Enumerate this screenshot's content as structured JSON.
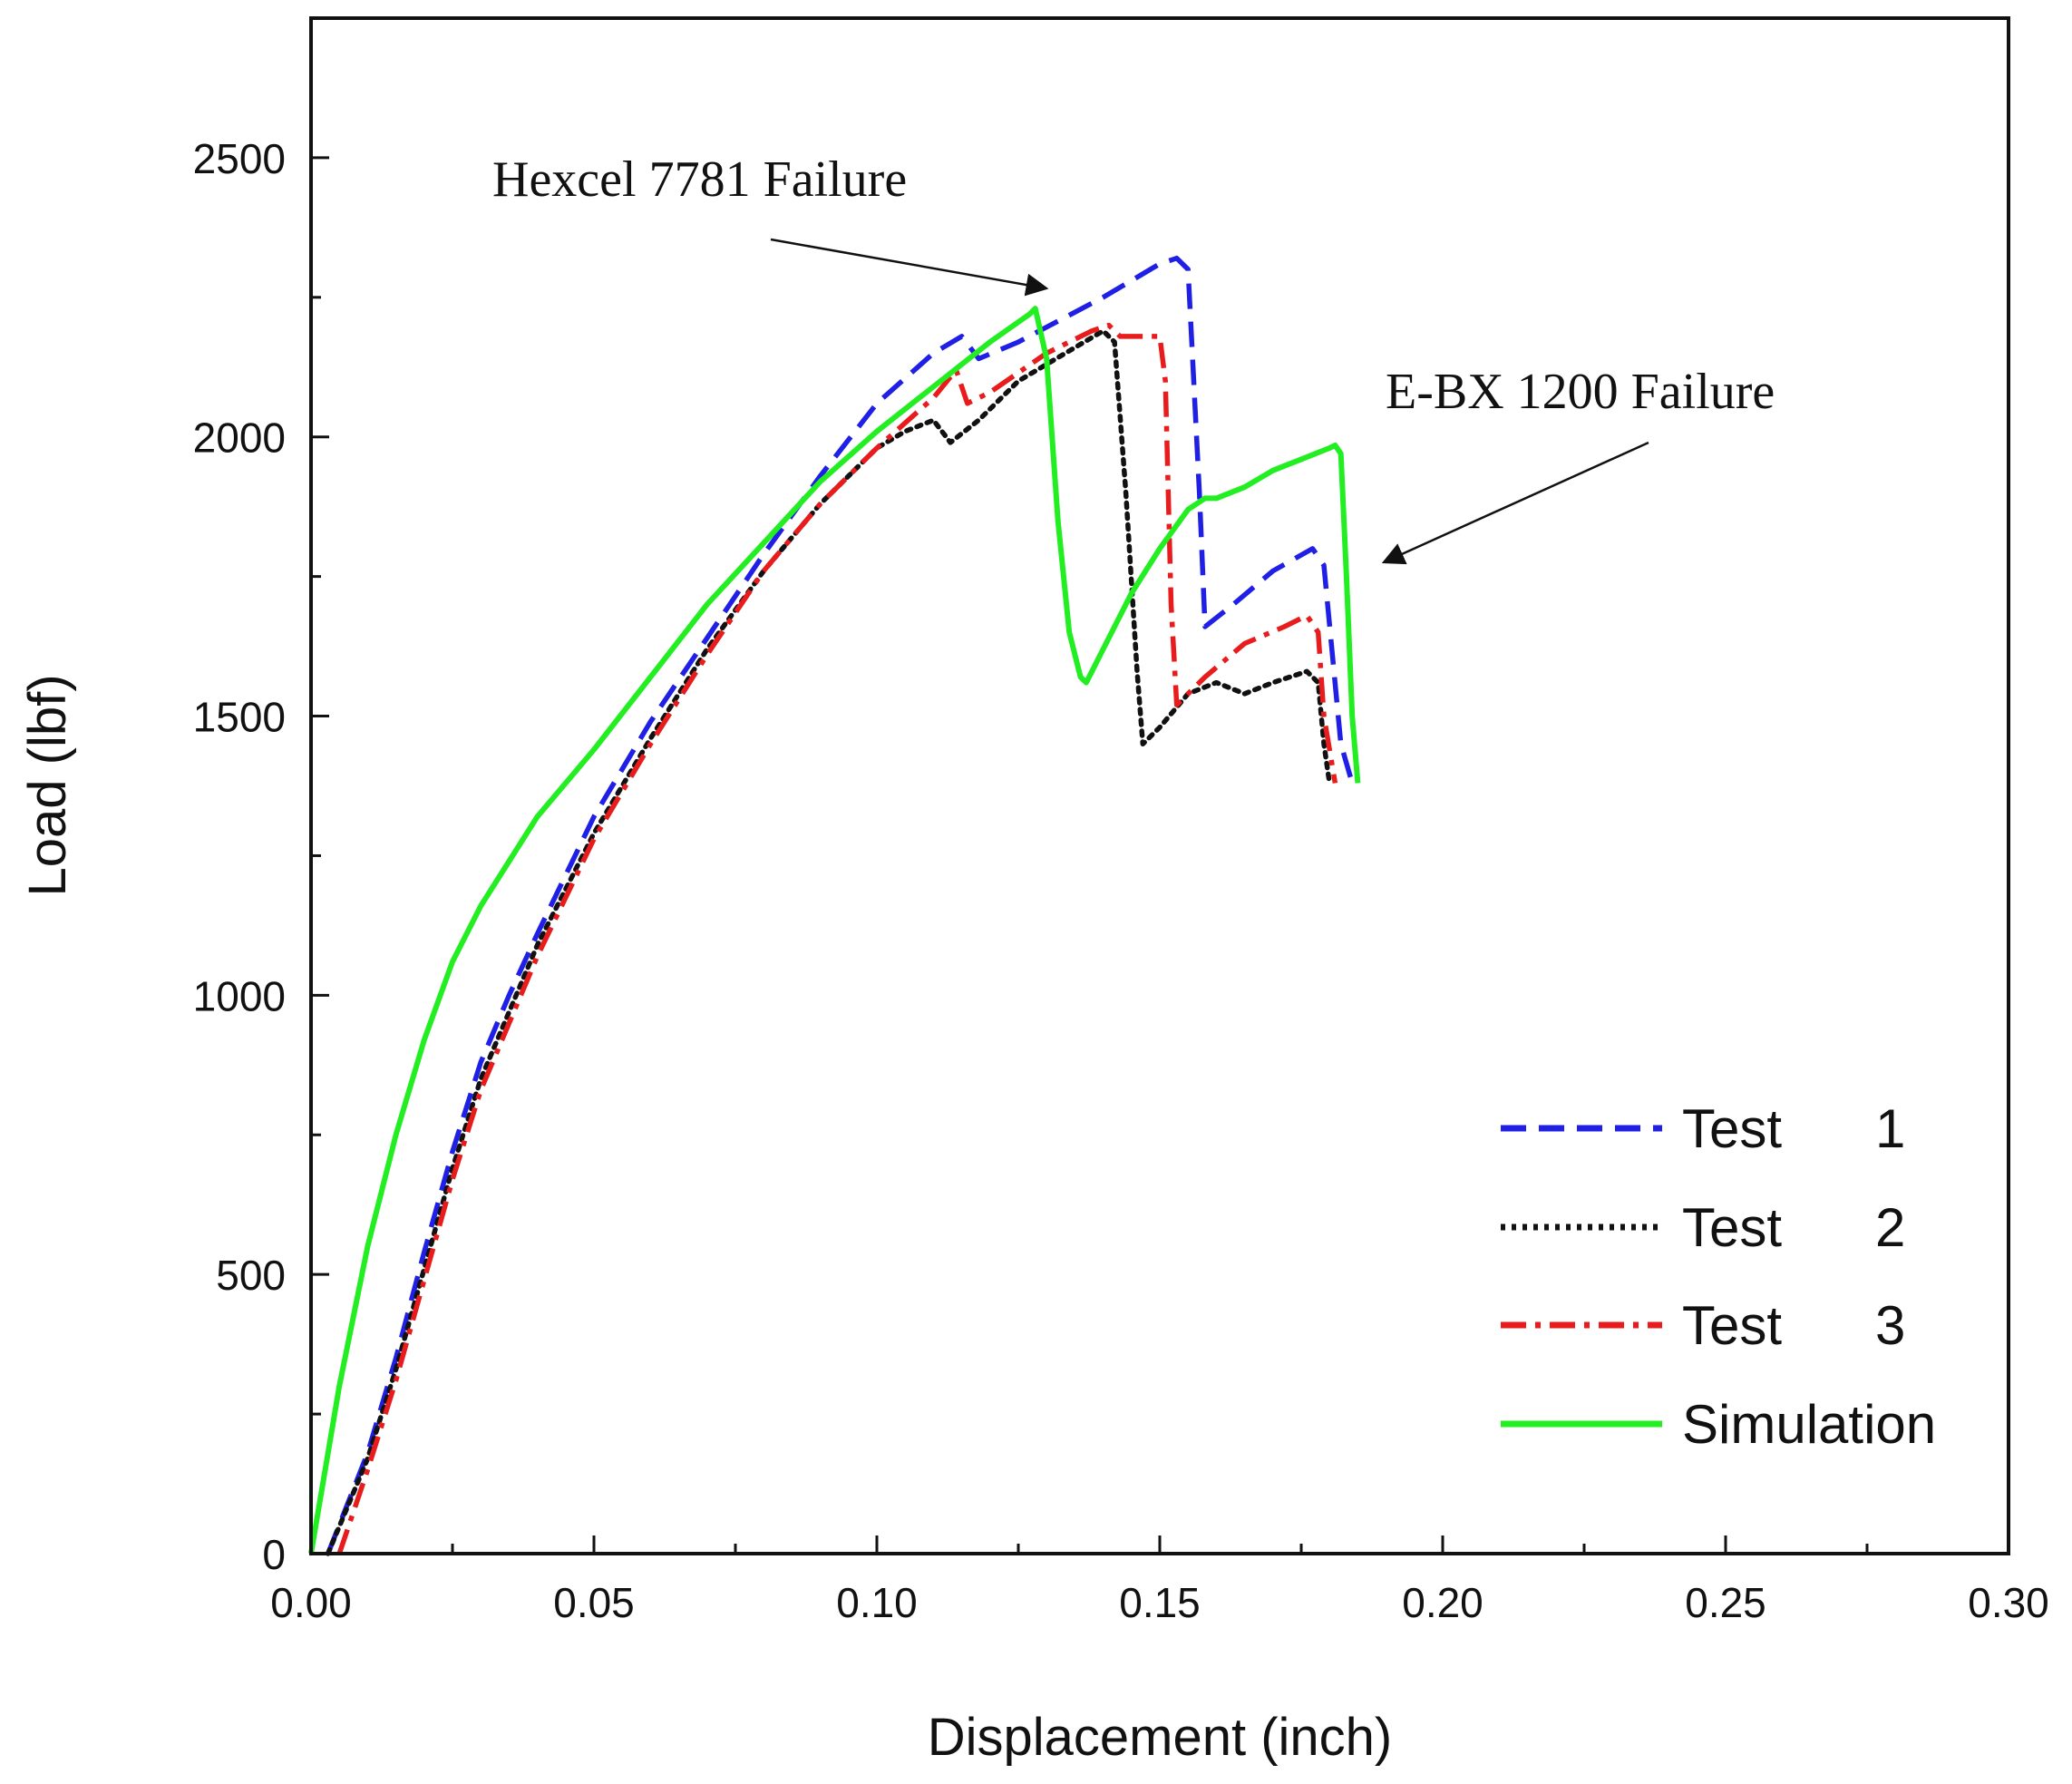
{
  "chart_data": {
    "type": "line",
    "title": "",
    "xlabel": "Displacement (inch)",
    "ylabel": "Load (lbf)",
    "xlim": [
      0.0,
      0.3
    ],
    "ylim": [
      0,
      2750
    ],
    "xticks": [
      "0.00",
      "0.05",
      "0.10",
      "0.15",
      "0.20",
      "0.25",
      "0.30"
    ],
    "yticks": [
      "0",
      "500",
      "1000",
      "1500",
      "2000",
      "2500"
    ],
    "grid": false,
    "legend_position": "bottom-right",
    "annotations": [
      {
        "text": "Hexcel 7781 Failure",
        "points_to": [
          0.13,
          2240
        ]
      },
      {
        "text": "E-BX 1200 Failure",
        "points_to": [
          0.188,
          1770
        ]
      }
    ],
    "series": [
      {
        "name": "Test",
        "legend_number": "1",
        "color": "#1f1fe6",
        "dash": "dashed",
        "points": [
          [
            0.003,
            0
          ],
          [
            0.01,
            180
          ],
          [
            0.015,
            350
          ],
          [
            0.02,
            540
          ],
          [
            0.025,
            720
          ],
          [
            0.03,
            880
          ],
          [
            0.035,
            1000
          ],
          [
            0.04,
            1110
          ],
          [
            0.05,
            1320
          ],
          [
            0.06,
            1490
          ],
          [
            0.07,
            1640
          ],
          [
            0.08,
            1790
          ],
          [
            0.09,
            1930
          ],
          [
            0.1,
            2060
          ],
          [
            0.11,
            2150
          ],
          [
            0.115,
            2180
          ],
          [
            0.118,
            2140
          ],
          [
            0.125,
            2170
          ],
          [
            0.14,
            2250
          ],
          [
            0.15,
            2310
          ],
          [
            0.153,
            2320
          ],
          [
            0.155,
            2300
          ],
          [
            0.157,
            1900
          ],
          [
            0.158,
            1660
          ],
          [
            0.163,
            1700
          ],
          [
            0.17,
            1760
          ],
          [
            0.177,
            1800
          ],
          [
            0.179,
            1770
          ],
          [
            0.182,
            1450
          ],
          [
            0.184,
            1380
          ]
        ]
      },
      {
        "name": "Test",
        "legend_number": "2",
        "color": "#111111",
        "dash": "dotted",
        "points": [
          [
            0.003,
            0
          ],
          [
            0.01,
            170
          ],
          [
            0.015,
            330
          ],
          [
            0.02,
            510
          ],
          [
            0.025,
            690
          ],
          [
            0.03,
            850
          ],
          [
            0.04,
            1090
          ],
          [
            0.05,
            1290
          ],
          [
            0.06,
            1460
          ],
          [
            0.07,
            1620
          ],
          [
            0.08,
            1760
          ],
          [
            0.09,
            1880
          ],
          [
            0.1,
            1980
          ],
          [
            0.105,
            2010
          ],
          [
            0.11,
            2030
          ],
          [
            0.113,
            1990
          ],
          [
            0.118,
            2030
          ],
          [
            0.125,
            2100
          ],
          [
            0.135,
            2160
          ],
          [
            0.14,
            2190
          ],
          [
            0.142,
            2170
          ],
          [
            0.144,
            1900
          ],
          [
            0.146,
            1580
          ],
          [
            0.147,
            1450
          ],
          [
            0.15,
            1480
          ],
          [
            0.155,
            1540
          ],
          [
            0.16,
            1560
          ],
          [
            0.165,
            1540
          ],
          [
            0.17,
            1560
          ],
          [
            0.176,
            1580
          ],
          [
            0.178,
            1560
          ],
          [
            0.179,
            1450
          ],
          [
            0.18,
            1380
          ]
        ]
      },
      {
        "name": "Test",
        "legend_number": "3",
        "color": "#e81c1c",
        "dash": "dash-dot",
        "points": [
          [
            0.005,
            0
          ],
          [
            0.01,
            150
          ],
          [
            0.015,
            310
          ],
          [
            0.02,
            490
          ],
          [
            0.025,
            670
          ],
          [
            0.03,
            830
          ],
          [
            0.04,
            1070
          ],
          [
            0.05,
            1280
          ],
          [
            0.06,
            1450
          ],
          [
            0.07,
            1610
          ],
          [
            0.08,
            1760
          ],
          [
            0.09,
            1880
          ],
          [
            0.1,
            1980
          ],
          [
            0.11,
            2070
          ],
          [
            0.114,
            2120
          ],
          [
            0.116,
            2060
          ],
          [
            0.12,
            2080
          ],
          [
            0.13,
            2150
          ],
          [
            0.138,
            2190
          ],
          [
            0.141,
            2200
          ],
          [
            0.143,
            2180
          ],
          [
            0.15,
            2180
          ],
          [
            0.151,
            2100
          ],
          [
            0.152,
            1700
          ],
          [
            0.153,
            1520
          ],
          [
            0.158,
            1570
          ],
          [
            0.165,
            1630
          ],
          [
            0.172,
            1660
          ],
          [
            0.176,
            1680
          ],
          [
            0.178,
            1650
          ],
          [
            0.179,
            1500
          ],
          [
            0.181,
            1380
          ]
        ]
      },
      {
        "name": "Simulation",
        "legend_number": "",
        "color": "#22ee22",
        "dash": "solid",
        "points": [
          [
            0.0,
            0
          ],
          [
            0.005,
            300
          ],
          [
            0.01,
            550
          ],
          [
            0.015,
            750
          ],
          [
            0.02,
            920
          ],
          [
            0.025,
            1060
          ],
          [
            0.03,
            1160
          ],
          [
            0.04,
            1320
          ],
          [
            0.05,
            1440
          ],
          [
            0.06,
            1570
          ],
          [
            0.07,
            1700
          ],
          [
            0.08,
            1810
          ],
          [
            0.09,
            1920
          ],
          [
            0.1,
            2010
          ],
          [
            0.11,
            2090
          ],
          [
            0.12,
            2170
          ],
          [
            0.127,
            2220
          ],
          [
            0.128,
            2230
          ],
          [
            0.13,
            2140
          ],
          [
            0.132,
            1850
          ],
          [
            0.134,
            1650
          ],
          [
            0.136,
            1570
          ],
          [
            0.137,
            1560
          ],
          [
            0.14,
            1620
          ],
          [
            0.145,
            1720
          ],
          [
            0.15,
            1800
          ],
          [
            0.155,
            1870
          ],
          [
            0.158,
            1890
          ],
          [
            0.16,
            1890
          ],
          [
            0.165,
            1910
          ],
          [
            0.17,
            1940
          ],
          [
            0.175,
            1960
          ],
          [
            0.18,
            1980
          ],
          [
            0.181,
            1985
          ],
          [
            0.182,
            1970
          ],
          [
            0.183,
            1750
          ],
          [
            0.184,
            1500
          ],
          [
            0.185,
            1380
          ]
        ]
      }
    ]
  }
}
